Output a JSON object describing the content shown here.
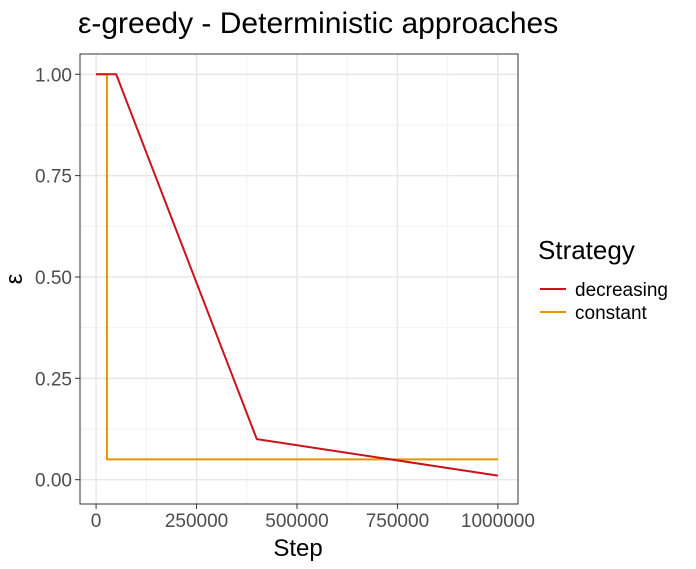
{
  "chart_data": {
    "type": "line",
    "title": "ε-greedy - Deterministic approaches",
    "xlabel": "Step",
    "ylabel": "ε",
    "xlim": [
      -40000,
      1050000
    ],
    "ylim": [
      -0.06,
      1.05
    ],
    "x_ticks": [
      0,
      250000,
      500000,
      750000,
      1000000
    ],
    "x_tick_labels": [
      "0",
      "250000",
      "500000",
      "750000",
      "1000000"
    ],
    "y_ticks": [
      0,
      0.25,
      0.5,
      0.75,
      1.0
    ],
    "y_tick_labels": [
      "0.00",
      "0.25",
      "0.50",
      "0.75",
      "1.00"
    ],
    "grid": true,
    "legend_position": "right",
    "legend_title": "Strategy",
    "series": [
      {
        "name": "decreasing",
        "color": "#c8141e",
        "points": [
          [
            0,
            1.0
          ],
          [
            50000,
            1.0
          ],
          [
            400000,
            0.1
          ],
          [
            1000000,
            0.01
          ]
        ]
      },
      {
        "name": "constant",
        "color": "#e69500",
        "points": [
          [
            0,
            1.0
          ],
          [
            27000,
            1.0
          ],
          [
            27000,
            0.05
          ],
          [
            1000000,
            0.05
          ]
        ]
      }
    ]
  }
}
